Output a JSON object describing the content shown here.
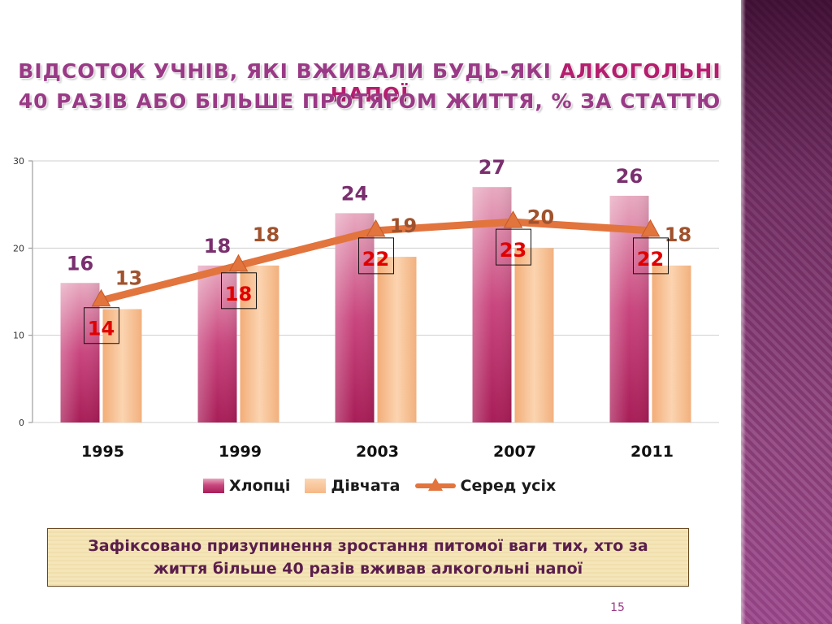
{
  "title": {
    "line1_prefix": "ВІДСОТОК УЧНІВ, ЯКІ ВЖИВАЛИ БУДЬ-ЯКІ ",
    "line1_highlight": "АЛКОГОЛЬНІ НАПОЇ",
    "line2": "40 РАЗІВ АБО БІЛЬШЕ ПРОТЯГОМ ЖИТТЯ, % ЗА СТАТТЮ"
  },
  "chart_data": {
    "type": "bar",
    "title": "ВІДСОТОК УЧНІВ, ЯКІ ВЖИВАЛИ БУДЬ-ЯКІ АЛКОГОЛЬНІ НАПОЇ 40 РАЗІВ АБО БІЛЬШЕ ПРОТЯГОМ ЖИТТЯ, % ЗА СТАТТЮ",
    "categories": [
      "1995",
      "1999",
      "2003",
      "2007",
      "2011"
    ],
    "series": [
      {
        "name": "Хлопці",
        "kind": "bar",
        "values": [
          16,
          18,
          24,
          27,
          26
        ]
      },
      {
        "name": "Дівчата",
        "kind": "bar",
        "values": [
          13,
          18,
          19,
          20,
          18
        ]
      },
      {
        "name": "Серед усіх",
        "kind": "line",
        "values": [
          14,
          18,
          22,
          23,
          22
        ]
      }
    ],
    "ylim": [
      0,
      30
    ],
    "yticks": [
      0,
      10,
      20,
      30
    ],
    "xlabel": "",
    "ylabel": "",
    "legend_position": "bottom",
    "colors": {
      "boys": "#c2386f",
      "girls": "#f6b886",
      "line": "#e2743d",
      "boys_label": "#7a2f6e",
      "girls_label": "#a0522d",
      "avg_label": "#e00000"
    }
  },
  "legend": {
    "boys": "Хлопці",
    "girls": "Дівчата",
    "avg": "Серед усіх"
  },
  "note": "Зафіксовано призупинення зростання питомої ваги тих, хто за життя більше 40 разів вживав алкогольні напої",
  "page_number": "15"
}
